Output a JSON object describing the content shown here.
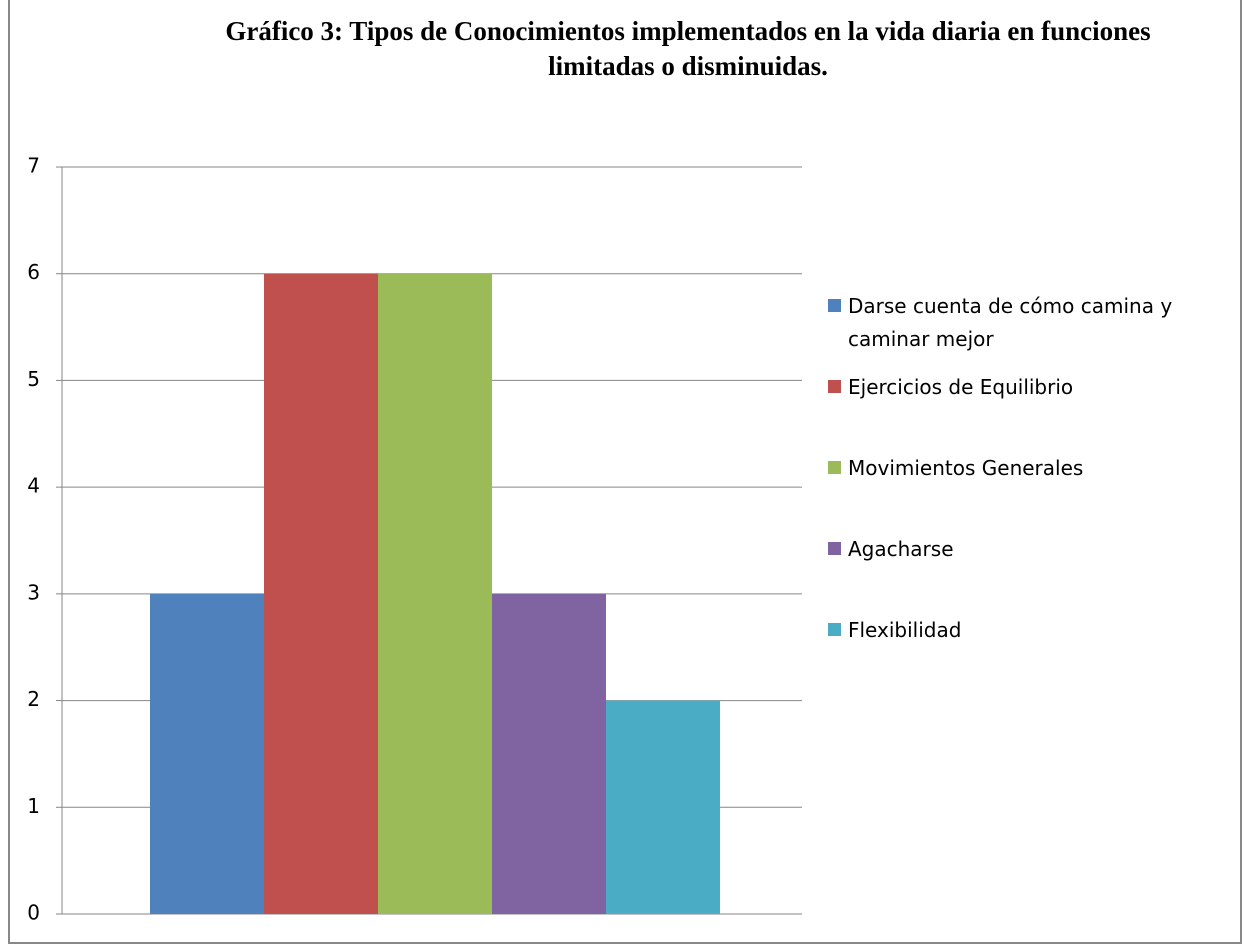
{
  "chart_data": {
    "type": "bar",
    "title": "Gráfico 3: Tipos de Conocimientos implementados en la vida diaria en funciones limitadas o disminuidas.",
    "categories": [
      null
    ],
    "series": [
      {
        "name": "Darse cuenta de cómo camina y caminar mejor",
        "color": "#4f81bd",
        "values": [
          3
        ]
      },
      {
        "name": "Ejercicios de Equilibrio",
        "color": "#c0504d",
        "values": [
          6
        ]
      },
      {
        "name": "Movimientos Generales",
        "color": "#9bbb59",
        "values": [
          6
        ]
      },
      {
        "name": "Agacharse",
        "color": "#8064a2",
        "values": [
          3
        ]
      },
      {
        "name": "Flexibilidad",
        "color": "#4bacc6",
        "values": [
          2
        ]
      }
    ],
    "ylim": [
      0,
      7
    ],
    "yticks": [
      0,
      1,
      2,
      3,
      4,
      5,
      6,
      7
    ],
    "grid": true,
    "legend": "right"
  }
}
